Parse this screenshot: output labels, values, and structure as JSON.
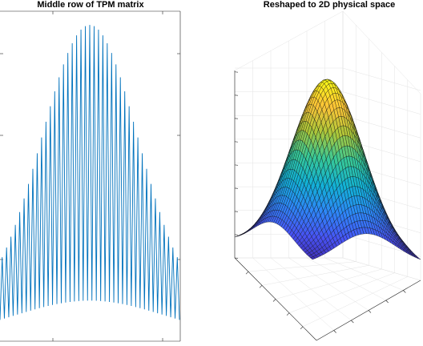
{
  "chart_data": [
    {
      "type": "line",
      "title": "Middle row of TPM matrix",
      "xlabel": "",
      "ylabel": "",
      "grid": false,
      "line_color": "#0072BD",
      "series": [
        {
          "description_pattern": "interleaved Gaussians: peaks of 0.46 at center and decaying toward edges, troughs following a flatter Gaussian",
          "num_oscillations": 41,
          "peak_max": 0.46,
          "peak_sigma_fraction": 0.27,
          "trough_max": 0.055,
          "trough_sigma_fraction": 0.42,
          "edge_floor": 0.04
        }
      ],
      "ylim": [
        0,
        0.48
      ]
    },
    {
      "type": "surface",
      "title": "Reshaped to 2D physical space",
      "xlabel": "",
      "ylabel": "",
      "zlabel": "",
      "grid": true,
      "colormap": "parula",
      "grid_size": 41,
      "surface": {
        "function": "gaussian_2d",
        "peak": 1.0,
        "sigma_fraction": 0.27,
        "floor": 0.08
      }
    }
  ]
}
